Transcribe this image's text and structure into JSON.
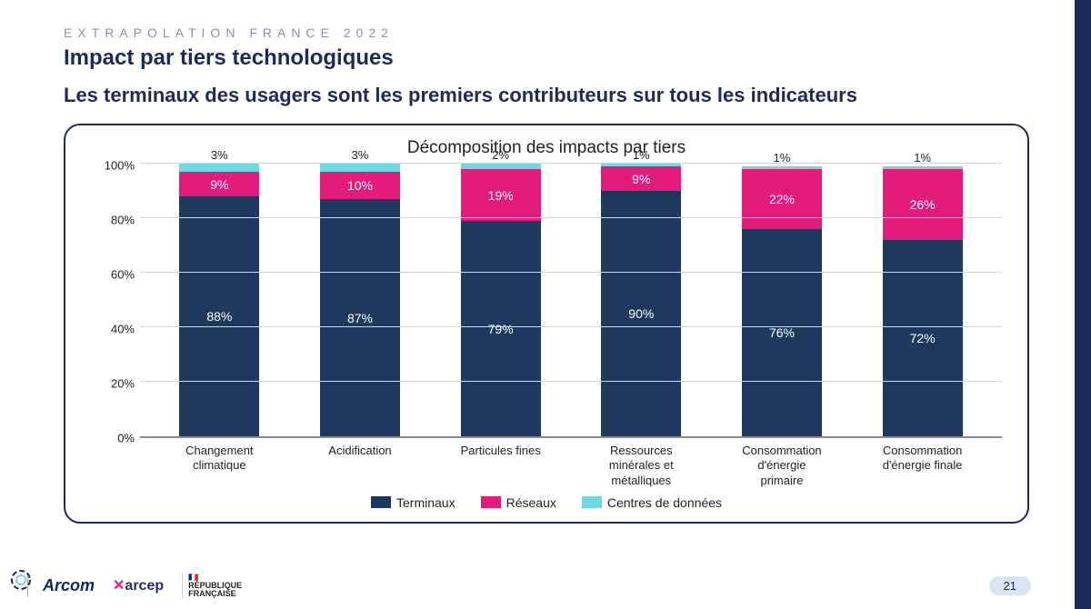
{
  "eyebrow": "EXTRAPOLATION FRANCE 2022",
  "title": "Impact par tiers technologiques",
  "subtitle": "Les terminaux des usagers sont les premiers contributeurs sur tous les indicateurs",
  "page_number": "21",
  "chart": {
    "type": "stacked-bar-100pct",
    "title": "Décomposition des impacts par tiers",
    "y_label_suffix": "%",
    "ylim": [
      0,
      100
    ],
    "ytick_step": 20,
    "yticks": [
      "0%",
      "20%",
      "40%",
      "60%",
      "80%",
      "100%"
    ],
    "background_color": "#ffffff",
    "grid_color": "#d7d7d7",
    "bar_width_ratio": 0.7,
    "categories": [
      "Changement\nclimatique",
      "Acidification",
      "Particules fines",
      "Ressources\nminérales et\nmétalliques",
      "Consommation\nd'énergie primaire",
      "Consommation\nd'énergie finale"
    ],
    "series": [
      {
        "key": "terminaux",
        "label": "Terminaux",
        "color": "#1e385e"
      },
      {
        "key": "reseaux",
        "label": "Réseaux",
        "color": "#e31b7b"
      },
      {
        "key": "centres",
        "label": "Centres de données",
        "color": "#6dd9e0"
      }
    ],
    "data": [
      {
        "terminaux": 88,
        "reseaux": 9,
        "centres": 3
      },
      {
        "terminaux": 87,
        "reseaux": 10,
        "centres": 3
      },
      {
        "terminaux": 79,
        "reseaux": 19,
        "centres": 2
      },
      {
        "terminaux": 90,
        "reseaux": 9,
        "centres": 1
      },
      {
        "terminaux": 76,
        "reseaux": 22,
        "centres": 1
      },
      {
        "terminaux": 72,
        "reseaux": 26,
        "centres": 1
      }
    ],
    "top_label_series": "centres",
    "label_fontsize": 14
  },
  "footer_logos": {
    "arcom": "Arcom",
    "arcep": "arcep",
    "rf": "RÉPUBLIQUE\nFRANÇAISE"
  },
  "slide_border_color": "#1e2a5a"
}
